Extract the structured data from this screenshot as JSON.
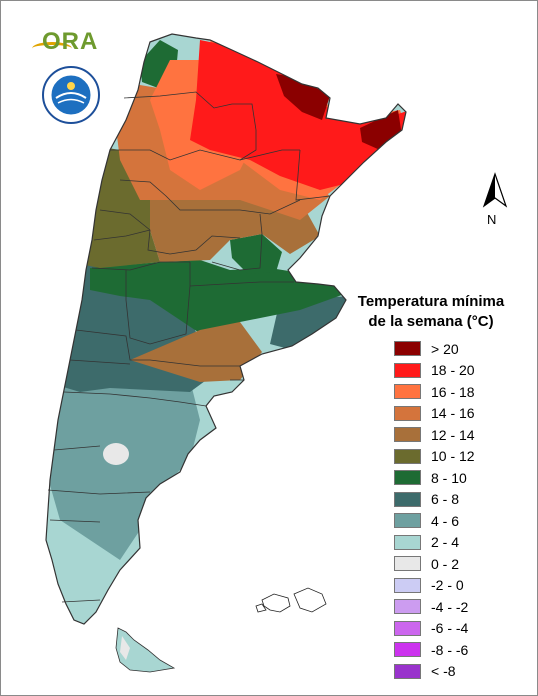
{
  "legend": {
    "title_line1": "Temperatura mínima",
    "title_line2": "de la semana (°C)",
    "items": [
      {
        "label": "> 20",
        "color": "#8b0000"
      },
      {
        "label": "18 - 20",
        "color": "#ff1a1a"
      },
      {
        "label": "16 - 18",
        "color": "#ff7340"
      },
      {
        "label": "14 - 16",
        "color": "#d4743c"
      },
      {
        "label": "12 - 14",
        "color": "#a8703a"
      },
      {
        "label": "10 - 12",
        "color": "#6b6b2e"
      },
      {
        "label": "8 - 10",
        "color": "#1e6b34"
      },
      {
        "label": "6 - 8",
        "color": "#3d6b6b"
      },
      {
        "label": "4 - 6",
        "color": "#6ea0a0"
      },
      {
        "label": "2 - 4",
        "color": "#a8d6d2"
      },
      {
        "label": "0 - 2",
        "color": "#e8e8e8"
      },
      {
        "label": "-2 - 0",
        "color": "#ccccf4"
      },
      {
        "label": "-4 - -2",
        "color": "#cc9cf0"
      },
      {
        "label": "-6 - -4",
        "color": "#cc66ee"
      },
      {
        "label": "-8 - -6",
        "color": "#cc33ee"
      },
      {
        "label": "< -8",
        "color": "#9933cc"
      }
    ]
  },
  "north_arrow": {
    "label": "N"
  },
  "logos": {
    "ora": "ORA"
  }
}
